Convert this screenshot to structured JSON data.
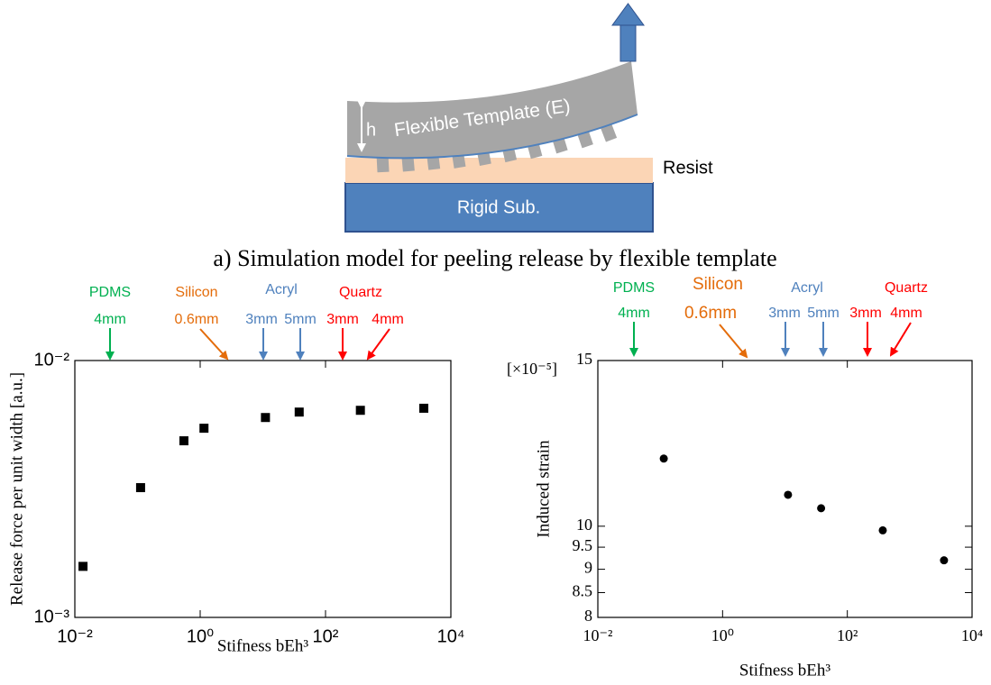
{
  "diagram": {
    "thickness_label": "h",
    "template_label": "Flexible Template (E)",
    "resist_label": "Resist",
    "substrate_label": "Rigid Sub."
  },
  "caption": "a) Simulation model for peeling release by flexible template",
  "chart_data": [
    {
      "type": "scatter",
      "xlabel": "Stifness bEh³",
      "ylabel": "Release force per unit width [a.u.]",
      "xscale": "log",
      "yscale": "log",
      "marker": "square",
      "color": "#000000",
      "x": [
        0.0135,
        0.112,
        0.55,
        1.15,
        11,
        38,
        360,
        3700
      ],
      "values": [
        0.00158,
        0.0032,
        0.00487,
        0.00545,
        0.006,
        0.0063,
        0.0064,
        0.00652
      ],
      "xlim": [
        0.01,
        10000
      ],
      "xticks": [
        {
          "value": 0.01,
          "label": "10⁻²"
        },
        {
          "value": 1,
          "label": "10⁰"
        },
        {
          "value": 100,
          "label": "10²"
        },
        {
          "value": 10000,
          "label": "10⁴"
        }
      ],
      "ylim": [
        0.001,
        0.01
      ],
      "yticks": [
        {
          "value": 0.001,
          "label": "10⁻³"
        },
        {
          "value": 0.01,
          "label": "10⁻²"
        }
      ],
      "annotations": [
        {
          "name": "PDMS",
          "color": "#00b050",
          "thicknesses": [
            "4mm"
          ]
        },
        {
          "name": "Silicon",
          "color": "#e46c0a",
          "thicknesses": [
            "0.6mm"
          ]
        },
        {
          "name": "Acryl",
          "color": "#4f81bd",
          "thicknesses": [
            "3mm",
            "5mm"
          ]
        },
        {
          "name": "Quartz",
          "color": "#ff0000",
          "thicknesses": [
            "3mm",
            "4mm"
          ]
        }
      ]
    },
    {
      "type": "scatter",
      "xlabel": "Stifness bEh³",
      "ylabel": "Induced strain",
      "yunit": "[×10⁻⁵]",
      "xscale": "log",
      "yscale": "log",
      "marker": "circle",
      "color": "#000000",
      "x": [
        0.114,
        11.2,
        38,
        370,
        3550
      ],
      "values": [
        11.8,
        10.8,
        10.45,
        9.9,
        9.2
      ],
      "xlim": [
        0.01,
        10000
      ],
      "xticks": [
        {
          "value": 0.01,
          "label": "10⁻²"
        },
        {
          "value": 1,
          "label": "10⁰"
        },
        {
          "value": 100,
          "label": "10²"
        },
        {
          "value": 10000,
          "label": "10⁴"
        }
      ],
      "ylim": [
        8,
        15
      ],
      "yticks": [
        8,
        8.5,
        9,
        9.5,
        10,
        15
      ],
      "annotations": [
        {
          "name": "PDMS",
          "color": "#00b050",
          "thicknesses": [
            "4mm"
          ]
        },
        {
          "name": "Silicon",
          "color": "#e46c0a",
          "thicknesses": [
            "0.6mm"
          ]
        },
        {
          "name": "Acryl",
          "color": "#4f81bd",
          "thicknesses": [
            "3mm",
            "5mm"
          ]
        },
        {
          "name": "Quartz",
          "color": "#ff0000",
          "thicknesses": [
            "3mm",
            "4mm"
          ]
        }
      ]
    }
  ]
}
